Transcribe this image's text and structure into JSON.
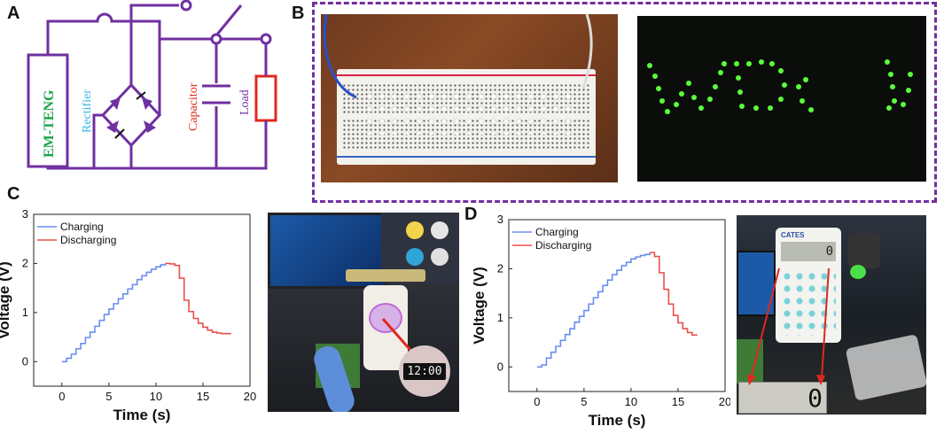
{
  "panels": {
    "a": "A",
    "b": "B",
    "c": "C",
    "d": "D"
  },
  "circuit": {
    "source_label": "EM-TENG",
    "rectifier_label": "Rectifier",
    "capacitor_label": "Capacitor",
    "load_label": "Load",
    "colors": {
      "wire": "#7030a0",
      "source": "#1aa34a",
      "rectifier": "#35b6e6",
      "capacitor": "#e0281e",
      "load": "#7030a0",
      "load_box": "#e0281e"
    }
  },
  "border_color": "#7030a0",
  "watch_readout": "12:00",
  "calculator": {
    "brand": "CATES",
    "display": "0",
    "zoom_display": "0"
  },
  "chart_data": [
    {
      "type": "line",
      "panel": "C",
      "title": "",
      "xlabel": "Time (s)",
      "ylabel": "Voltage (V)",
      "xlim": [
        -3,
        20
      ],
      "ylim": [
        -0.5,
        3
      ],
      "xticks": [
        0,
        5,
        10,
        15,
        20
      ],
      "yticks": [
        0,
        1,
        2,
        3
      ],
      "legend_position": "top-left",
      "series": [
        {
          "name": "Charging",
          "color": "#6a8ef0",
          "x": [
            0,
            0.5,
            1,
            1.5,
            2,
            2.5,
            3,
            3.5,
            4,
            4.5,
            5,
            5.5,
            6,
            6.5,
            7,
            7.5,
            8,
            8.5,
            9,
            9.5,
            10,
            10.5,
            11
          ],
          "y": [
            0,
            0.07,
            0.15,
            0.26,
            0.37,
            0.49,
            0.6,
            0.72,
            0.84,
            0.96,
            1.07,
            1.18,
            1.28,
            1.38,
            1.48,
            1.57,
            1.67,
            1.75,
            1.82,
            1.88,
            1.93,
            1.97,
            2.0
          ]
        },
        {
          "name": "Discharging",
          "color": "#e8504a",
          "x": [
            11,
            11.5,
            12,
            12.5,
            13,
            13.5,
            14,
            14.5,
            15,
            15.5,
            16,
            16.5,
            17,
            17.5,
            18
          ],
          "y": [
            2.0,
            1.99,
            1.96,
            1.7,
            1.25,
            1.02,
            0.88,
            0.78,
            0.7,
            0.64,
            0.6,
            0.58,
            0.57,
            0.57,
            0.57
          ]
        }
      ]
    },
    {
      "type": "line",
      "panel": "D",
      "title": "",
      "xlabel": "Time (s)",
      "ylabel": "Voltage (V)",
      "xlim": [
        -3,
        20
      ],
      "ylim": [
        -0.5,
        3
      ],
      "xticks": [
        0,
        5,
        10,
        15,
        20
      ],
      "yticks": [
        0,
        1,
        2,
        3
      ],
      "legend_position": "top-left",
      "series": [
        {
          "name": "Charging",
          "color": "#6a8ef0",
          "x": [
            0,
            0.5,
            1,
            1.5,
            2,
            2.5,
            3,
            3.5,
            4,
            4.5,
            5,
            5.5,
            6,
            6.5,
            7,
            7.5,
            8,
            8.5,
            9,
            9.5,
            10,
            10.5,
            11,
            11.5,
            12
          ],
          "y": [
            0,
            0.04,
            0.18,
            0.3,
            0.42,
            0.54,
            0.66,
            0.78,
            0.91,
            1.03,
            1.15,
            1.28,
            1.41,
            1.53,
            1.66,
            1.77,
            1.88,
            1.97,
            2.06,
            2.13,
            2.2,
            2.24,
            2.27,
            2.29,
            2.33
          ]
        },
        {
          "name": "Discharging",
          "color": "#e8504a",
          "x": [
            12,
            12.5,
            13,
            13.5,
            14,
            14.5,
            15,
            15.5,
            16,
            16.5,
            17
          ],
          "y": [
            2.33,
            2.25,
            1.92,
            1.58,
            1.28,
            1.05,
            0.9,
            0.78,
            0.7,
            0.65,
            0.64
          ]
        }
      ]
    }
  ]
}
